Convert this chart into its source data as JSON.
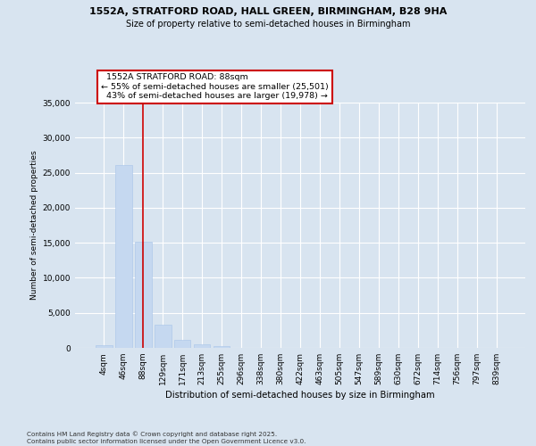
{
  "title_line1": "1552A, STRATFORD ROAD, HALL GREEN, BIRMINGHAM, B28 9HA",
  "title_line2": "Size of property relative to semi-detached houses in Birmingham",
  "xlabel": "Distribution of semi-detached houses by size in Birmingham",
  "ylabel": "Number of semi-detached properties",
  "categories": [
    "4sqm",
    "46sqm",
    "88sqm",
    "129sqm",
    "171sqm",
    "213sqm",
    "255sqm",
    "296sqm",
    "338sqm",
    "380sqm",
    "422sqm",
    "463sqm",
    "505sqm",
    "547sqm",
    "589sqm",
    "630sqm",
    "672sqm",
    "714sqm",
    "756sqm",
    "797sqm",
    "839sqm"
  ],
  "values": [
    350,
    26100,
    15200,
    3300,
    1100,
    450,
    250,
    0,
    0,
    0,
    0,
    0,
    0,
    0,
    0,
    0,
    0,
    0,
    0,
    0,
    0
  ],
  "bar_color": "#c5d8f0",
  "bar_edge_color": "#a8c4e8",
  "subject_bar_index": 2,
  "subject_label": "1552A STRATFORD ROAD: 88sqm",
  "smaller_pct": "55%",
  "smaller_count": "25,501",
  "larger_pct": "43%",
  "larger_count": "19,978",
  "annotation_box_color": "#cc0000",
  "vertical_line_color": "#cc0000",
  "ylim": [
    0,
    35000
  ],
  "yticks": [
    0,
    5000,
    10000,
    15000,
    20000,
    25000,
    30000,
    35000
  ],
  "background_color": "#d8e4f0",
  "plot_bg_color": "#d8e4f0",
  "grid_color": "#ffffff",
  "footer_line1": "Contains HM Land Registry data © Crown copyright and database right 2025.",
  "footer_line2": "Contains public sector information licensed under the Open Government Licence v3.0."
}
